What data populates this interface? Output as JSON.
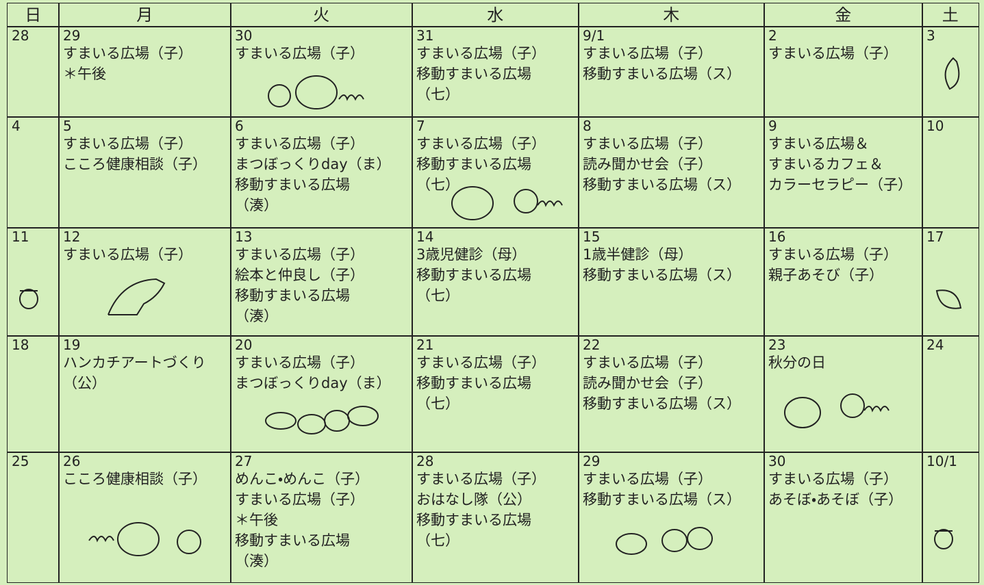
{
  "header": {
    "days": [
      "日",
      "月",
      "火",
      "水",
      "木",
      "金",
      "土"
    ]
  },
  "weeks": [
    [
      {
        "date": "28"
      },
      {
        "date": "29",
        "lines": [
          "すまいる広場（子）",
          "＊午後"
        ]
      },
      {
        "date": "30",
        "lines": [
          "すまいる広場（子）"
        ]
      },
      {
        "date": "31",
        "lines": [
          "すまいる広場（子）",
          "移動すまいる広場",
          "（七）"
        ]
      },
      {
        "date": "9/1",
        "lines": [
          "すまいる広場（子）",
          "移動すまいる広場（ス）"
        ]
      },
      {
        "date": "2",
        "lines": [
          "すまいる広場（子）"
        ]
      },
      {
        "date": "3"
      }
    ],
    [
      {
        "date": "4"
      },
      {
        "date": "5",
        "lines": [
          "すまいる広場（子）",
          "こころ健康相談（子）"
        ]
      },
      {
        "date": "6",
        "lines": [
          "すまいる広場（子）",
          "まつぼっくりday（ま）",
          "移動すまいる広場",
          "（湊）"
        ]
      },
      {
        "date": "7",
        "lines": [
          "すまいる広場（子）",
          "移動すまいる広場",
          "（七）"
        ]
      },
      {
        "date": "8",
        "lines": [
          "すまいる広場（子）",
          "読み聞かせ会（子）",
          "移動すまいる広場（ス）"
        ]
      },
      {
        "date": "9",
        "lines": [
          "すまいる広場＆",
          "すまいるカフェ＆",
          "カラーセラピー（子）"
        ]
      },
      {
        "date": "10"
      }
    ],
    [
      {
        "date": "11"
      },
      {
        "date": "12",
        "lines": [
          "すまいる広場（子）"
        ]
      },
      {
        "date": "13",
        "lines": [
          "すまいる広場（子）",
          "絵本と仲良し（子）",
          "移動すまいる広場",
          "（湊）"
        ]
      },
      {
        "date": "14",
        "lines": [
          "3歳児健診（母）",
          "移動すまいる広場",
          "（七）"
        ]
      },
      {
        "date": "15",
        "lines": [
          "1歳半健診（母）",
          "移動すまいる広場（ス）"
        ]
      },
      {
        "date": "16",
        "lines": [
          "すまいる広場（子）",
          "親子あそび（子）"
        ]
      },
      {
        "date": "17"
      }
    ],
    [
      {
        "date": "18"
      },
      {
        "date": "19",
        "lines": [
          "ハンカチアートづくり",
          "（公）"
        ]
      },
      {
        "date": "20",
        "lines": [
          "すまいる広場（子）",
          "まつぼっくりday（ま）"
        ]
      },
      {
        "date": "21",
        "lines": [
          "すまいる広場（子）",
          "移動すまいる広場",
          "（七）"
        ]
      },
      {
        "date": "22",
        "lines": [
          "すまいる広場（子）",
          "読み聞かせ会（子）",
          "移動すまいる広場（ス）"
        ]
      },
      {
        "date": "23",
        "lines": [
          "秋分の日"
        ]
      },
      {
        "date": "24"
      }
    ],
    [
      {
        "date": "25"
      },
      {
        "date": "26",
        "lines": [
          "こころ健康相談（子）"
        ]
      },
      {
        "date": "27",
        "lines": [
          "めんこ・めんこ（子）",
          "すまいる広場（子）",
          "＊午後",
          "移動すまいる広場",
          "（湊）"
        ]
      },
      {
        "date": "28",
        "lines": [
          "すまいる広場（子）",
          "おはなし隊（公）",
          "移動すまいる広場",
          "（七）"
        ]
      },
      {
        "date": "29",
        "lines": [
          "すまいる広場（子）",
          "移動すまいる広場（ス）"
        ]
      },
      {
        "date": "30",
        "lines": [
          "すまいる広場（子）",
          "あそぼ・あそぼ（子）"
        ]
      },
      {
        "date": "10/1"
      }
    ]
  ]
}
